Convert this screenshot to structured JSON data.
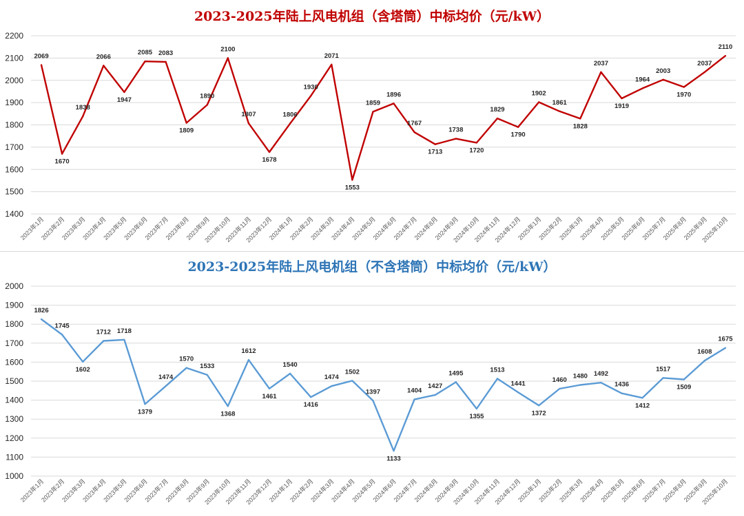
{
  "chart_data": [
    {
      "type": "line",
      "title": "2023-2025年陆上风电机组（含塔筒）中标均价（元/kW）",
      "title_color": "#c00000",
      "line_color": "#c00000",
      "xlabel": "",
      "ylabel": "",
      "ylim": [
        1400,
        2200
      ],
      "yticks": [
        1400,
        1500,
        1600,
        1700,
        1800,
        1900,
        2000,
        2100,
        2200
      ],
      "grid": true,
      "categories": [
        "2023年1月",
        "2023年2月",
        "2023年3月",
        "2023年4月",
        "2023年5月",
        "2023年6月",
        "2023年7月",
        "2023年8月",
        "2023年9月",
        "2023年10月",
        "2023年11月",
        "2023年12月",
        "2024年1月",
        "2024年2月",
        "2024年3月",
        "2024年4月",
        "2024年5月",
        "2024年6月",
        "2024年7月",
        "2024年8月",
        "2024年9月",
        "2024年10月",
        "2024年11月",
        "2024年12月",
        "2025年1月",
        "2025年2月",
        "2025年3月",
        "2025年4月",
        "2025年5月",
        "2025年6月",
        "2025年7月",
        "2025年8月",
        "2025年9月",
        "2025年10月"
      ],
      "values": [
        2069,
        1670,
        1838,
        2066,
        1947,
        2085,
        2083,
        1809,
        1890,
        2100,
        1807,
        1678,
        1806,
        1930,
        2071,
        1553,
        1859,
        1896,
        1767,
        1713,
        1738,
        1720,
        1829,
        1790,
        1902,
        1861,
        1828,
        2037,
        1919,
        1964,
        2003,
        1970,
        2037,
        2110
      ]
    },
    {
      "type": "line",
      "title": "2023-2025年陆上风电机组（不含塔筒）中标均价（元/kW）",
      "title_color": "#2e75b6",
      "line_color": "#5b9bd5",
      "xlabel": "",
      "ylabel": "",
      "ylim": [
        1000,
        2000
      ],
      "yticks": [
        1000,
        1100,
        1200,
        1300,
        1400,
        1500,
        1600,
        1700,
        1800,
        1900,
        2000
      ],
      "grid": true,
      "categories": [
        "2023年1月",
        "2023年2月",
        "2023年3月",
        "2023年4月",
        "2023年5月",
        "2023年6月",
        "2023年7月",
        "2023年8月",
        "2023年9月",
        "2023年10月",
        "2023年11月",
        "2023年12月",
        "2024年1月",
        "2024年2月",
        "2024年3月",
        "2024年4月",
        "2024年5月",
        "2024年6月",
        "2024年7月",
        "2024年8月",
        "2024年9月",
        "2024年10月",
        "2024年11月",
        "2024年12月",
        "2025年1月",
        "2025年2月",
        "2025年3月",
        "2025年4月",
        "2025年5月",
        "2025年6月",
        "2025年7月",
        "2025年8月",
        "2025年9月",
        "2025年10月"
      ],
      "values": [
        1826,
        1745,
        1602,
        1712,
        1718,
        1379,
        1474,
        1570,
        1533,
        1368,
        1612,
        1461,
        1540,
        1416,
        1474,
        1502,
        1397,
        1133,
        1404,
        1427,
        1495,
        1355,
        1513,
        1441,
        1372,
        1460,
        1480,
        1492,
        1436,
        1412,
        1517,
        1509,
        1608,
        1675
      ]
    }
  ]
}
